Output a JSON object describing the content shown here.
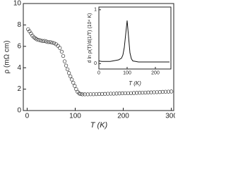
{
  "chart_data": [
    {
      "type": "scatter",
      "x_label": "T (K)",
      "y_label": "ρ (mΩ cm)",
      "color": "#333333",
      "x": [
        2,
        5,
        8,
        11,
        14,
        17,
        20,
        24,
        28,
        32,
        36,
        40,
        44,
        48,
        52,
        56,
        60,
        64,
        68,
        72,
        75,
        78,
        81,
        84,
        87,
        90,
        93,
        96,
        99,
        102,
        105,
        108,
        111,
        115,
        120,
        126,
        132,
        138,
        144,
        150,
        156,
        162,
        168,
        174,
        180,
        186,
        192,
        198,
        204,
        210,
        216,
        222,
        228,
        234,
        240,
        246,
        252,
        258,
        264,
        270,
        276,
        282,
        288,
        294,
        300
      ],
      "values": [
        7.6,
        7.4,
        7.2,
        7.0,
        6.85,
        6.75,
        6.65,
        6.6,
        6.55,
        6.5,
        6.5,
        6.45,
        6.4,
        6.4,
        6.35,
        6.3,
        6.2,
        6.05,
        5.85,
        5.5,
        5.1,
        4.6,
        4.2,
        3.85,
        3.5,
        3.2,
        2.9,
        2.6,
        2.3,
        2.0,
        1.75,
        1.6,
        1.55,
        1.52,
        1.52,
        1.52,
        1.53,
        1.53,
        1.54,
        1.55,
        1.55,
        1.56,
        1.57,
        1.58,
        1.58,
        1.59,
        1.6,
        1.61,
        1.62,
        1.62,
        1.63,
        1.64,
        1.65,
        1.66,
        1.67,
        1.68,
        1.69,
        1.7,
        1.71,
        1.72,
        1.73,
        1.75,
        1.76,
        1.77,
        1.78
      ],
      "xlim": [
        -8,
        305
      ],
      "ylim": [
        0,
        10
      ],
      "xticks": [
        0,
        100,
        200,
        300
      ],
      "yticks": [
        0,
        2,
        4,
        6,
        8,
        10
      ]
    },
    {
      "type": "line",
      "x_label": "T (K)",
      "y_label": "d ln ρ(T)/d(1/T) (10⁴ K)",
      "color": "#111111",
      "x": [
        0,
        10,
        20,
        30,
        40,
        50,
        60,
        70,
        80,
        85,
        90,
        95,
        100,
        105,
        110,
        115,
        120,
        130,
        140,
        150,
        160,
        170,
        180,
        190,
        200,
        210,
        220,
        230,
        240,
        250
      ],
      "values": [
        0.05,
        0.04,
        0.04,
        0.04,
        0.04,
        0.05,
        0.06,
        0.07,
        0.1,
        0.16,
        0.3,
        0.55,
        0.8,
        0.5,
        0.2,
        0.09,
        0.05,
        0.04,
        0.03,
        0.03,
        0.03,
        0.03,
        0.03,
        0.03,
        0.03,
        0.03,
        0.03,
        0.03,
        0.03,
        0.03
      ],
      "xlim": [
        0,
        255
      ],
      "ylim": [
        -0.1,
        1.05
      ],
      "xticks": [
        0,
        100,
        200
      ],
      "yticks": [
        0,
        1
      ]
    }
  ]
}
